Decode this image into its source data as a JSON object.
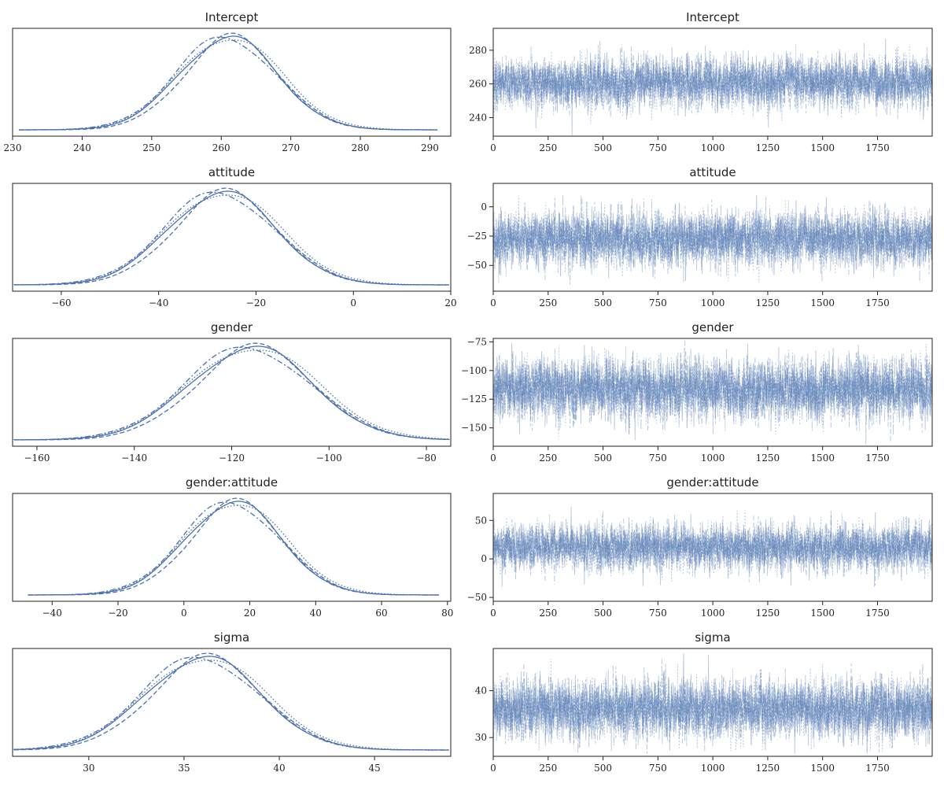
{
  "chart_data": [
    {
      "panel": "posterior",
      "type": "line",
      "title": "Intercept",
      "mean": 261,
      "sd": 7.0,
      "xlim": [
        230,
        293
      ],
      "xticks": [
        230,
        240,
        250,
        260,
        270,
        280,
        290
      ],
      "yticks_visible": false,
      "n_chains": 4,
      "grid": false,
      "legend": "none",
      "color": "#4c72b0"
    },
    {
      "panel": "trace",
      "type": "line",
      "title": "Intercept",
      "mean": 261,
      "sd": 7.0,
      "n_draws": 2000,
      "n_chains": 4,
      "xlim": [
        0,
        1999
      ],
      "ylim": [
        229,
        293
      ],
      "xticks": [
        0,
        250,
        500,
        750,
        1000,
        1250,
        1500,
        1750
      ],
      "yticks": [
        240,
        260,
        280
      ],
      "grid": false,
      "legend": "none",
      "color": "#4c72b0"
    },
    {
      "panel": "posterior",
      "type": "line",
      "title": "attitude",
      "mean": -27,
      "sd": 11.0,
      "xlim": [
        -70,
        20
      ],
      "xticks": [
        -60,
        -40,
        -20,
        0,
        20
      ],
      "yticks_visible": false,
      "n_chains": 4,
      "grid": false,
      "legend": "none",
      "color": "#4c72b0"
    },
    {
      "panel": "trace",
      "type": "line",
      "title": "attitude",
      "mean": -27,
      "sd": 11.0,
      "n_draws": 2000,
      "n_chains": 4,
      "xlim": [
        0,
        1999
      ],
      "ylim": [
        -72,
        20
      ],
      "xticks": [
        0,
        250,
        500,
        750,
        1000,
        1250,
        1500,
        1750
      ],
      "yticks": [
        -50,
        -25,
        0
      ],
      "grid": false,
      "legend": "none",
      "color": "#4c72b0"
    },
    {
      "panel": "posterior",
      "type": "line",
      "title": "gender",
      "mean": -116,
      "sd": 12.5,
      "xlim": [
        -165,
        -75
      ],
      "xticks": [
        -160,
        -140,
        -120,
        -100,
        -80
      ],
      "yticks_visible": false,
      "n_chains": 4,
      "grid": false,
      "legend": "none",
      "color": "#4c72b0"
    },
    {
      "panel": "trace",
      "type": "line",
      "title": "gender",
      "mean": -116,
      "sd": 12.5,
      "n_draws": 2000,
      "n_chains": 4,
      "xlim": [
        0,
        1999
      ],
      "ylim": [
        -166,
        -72
      ],
      "xticks": [
        0,
        250,
        500,
        750,
        1000,
        1250,
        1500,
        1750
      ],
      "yticks": [
        -150,
        -125,
        -100,
        -75
      ],
      "grid": false,
      "legend": "none",
      "color": "#4c72b0"
    },
    {
      "panel": "posterior",
      "type": "line",
      "title": "gender:attitude",
      "mean": 15,
      "sd": 14.5,
      "xlim": [
        -52,
        81
      ],
      "xticks": [
        -40,
        -20,
        0,
        20,
        40,
        60,
        80
      ],
      "yticks_visible": false,
      "n_chains": 4,
      "grid": false,
      "legend": "none",
      "color": "#4c72b0"
    },
    {
      "panel": "trace",
      "type": "line",
      "title": "gender:attitude",
      "mean": 15,
      "sd": 14.5,
      "n_draws": 2000,
      "n_chains": 4,
      "xlim": [
        0,
        1999
      ],
      "ylim": [
        -55,
        85
      ],
      "xticks": [
        0,
        250,
        500,
        750,
        1000,
        1250,
        1500,
        1750
      ],
      "yticks": [
        -50,
        0,
        50
      ],
      "grid": false,
      "legend": "none",
      "color": "#4c72b0"
    },
    {
      "panel": "posterior",
      "type": "line",
      "title": "sigma",
      "mean": 36,
      "sd": 3.0,
      "xlim": [
        26,
        49
      ],
      "xticks": [
        30,
        35,
        40,
        45
      ],
      "yticks_visible": false,
      "n_chains": 4,
      "grid": false,
      "legend": "none",
      "color": "#4c72b0"
    },
    {
      "panel": "trace",
      "type": "line",
      "title": "sigma",
      "mean": 36,
      "sd": 3.0,
      "n_draws": 2000,
      "n_chains": 4,
      "xlim": [
        0,
        1999
      ],
      "ylim": [
        26,
        49
      ],
      "xticks": [
        0,
        250,
        500,
        750,
        1000,
        1250,
        1500,
        1750
      ],
      "yticks": [
        30,
        40
      ],
      "grid": false,
      "legend": "none",
      "color": "#4c72b0"
    }
  ]
}
